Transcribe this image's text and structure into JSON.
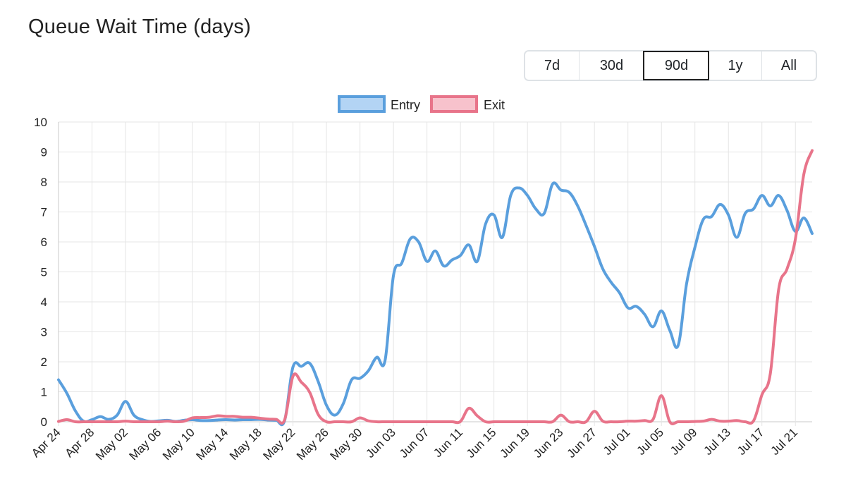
{
  "page": {
    "title": "Queue Wait Time (days)"
  },
  "range_buttons": [
    {
      "label": "7d",
      "active": false
    },
    {
      "label": "30d",
      "active": false
    },
    {
      "label": "90d",
      "active": true
    },
    {
      "label": "1y",
      "active": false
    },
    {
      "label": "All",
      "active": false
    }
  ],
  "chart_data": {
    "type": "line",
    "title": "",
    "xlabel": "",
    "ylabel": "",
    "ylim": [
      0,
      10
    ],
    "yticks": [
      0,
      1,
      2,
      3,
      4,
      5,
      6,
      7,
      8,
      9,
      10
    ],
    "grid": true,
    "legend_position": "top",
    "x": [
      "Apr 24",
      "Apr 25",
      "Apr 26",
      "Apr 27",
      "Apr 28",
      "Apr 29",
      "Apr 30",
      "May 01",
      "May 02",
      "May 03",
      "May 04",
      "May 05",
      "May 06",
      "May 07",
      "May 08",
      "May 09",
      "May 10",
      "May 11",
      "May 12",
      "May 13",
      "May 14",
      "May 15",
      "May 16",
      "May 17",
      "May 18",
      "May 19",
      "May 20",
      "May 21",
      "May 22",
      "May 23",
      "May 24",
      "May 25",
      "May 26",
      "May 27",
      "May 28",
      "May 29",
      "May 30",
      "May 31",
      "Jun 01",
      "Jun 02",
      "Jun 03",
      "Jun 04",
      "Jun 05",
      "Jun 06",
      "Jun 07",
      "Jun 08",
      "Jun 09",
      "Jun 10",
      "Jun 11",
      "Jun 12",
      "Jun 13",
      "Jun 14",
      "Jun 15",
      "Jun 16",
      "Jun 17",
      "Jun 18",
      "Jun 19",
      "Jun 20",
      "Jun 21",
      "Jun 22",
      "Jun 23",
      "Jun 24",
      "Jun 25",
      "Jun 26",
      "Jun 27",
      "Jun 28",
      "Jun 29",
      "Jun 30",
      "Jul 01",
      "Jul 02",
      "Jul 03",
      "Jul 04",
      "Jul 05",
      "Jul 06",
      "Jul 07",
      "Jul 08",
      "Jul 09",
      "Jul 10",
      "Jul 11",
      "Jul 12",
      "Jul 13",
      "Jul 14",
      "Jul 15",
      "Jul 16",
      "Jul 17",
      "Jul 18",
      "Jul 19",
      "Jul 20",
      "Jul 21",
      "Jul 22",
      "Jul 23"
    ],
    "x_tick_labels": [
      "Apr 24",
      "Apr 28",
      "May 02",
      "May 06",
      "May 10",
      "May 14",
      "May 18",
      "May 22",
      "May 26",
      "May 30",
      "Jun 03",
      "Jun 07",
      "Jun 11",
      "Jun 15",
      "Jun 19",
      "Jun 23",
      "Jun 27",
      "Jul 01",
      "Jul 05",
      "Jul 09",
      "Jul 13",
      "Jul 17",
      "Jul 21"
    ],
    "series": [
      {
        "name": "Entry",
        "color": "#5a9fdd",
        "fill": "#b3d4f4",
        "values": [
          1.4,
          0.95,
          0.37,
          0.02,
          0.07,
          0.17,
          0.08,
          0.22,
          0.68,
          0.22,
          0.07,
          0.01,
          0.03,
          0.05,
          0.01,
          0.05,
          0.07,
          0.04,
          0.04,
          0.06,
          0.07,
          0.06,
          0.07,
          0.07,
          0.08,
          0.06,
          0.05,
          0.04,
          1.83,
          1.85,
          1.95,
          1.35,
          0.55,
          0.22,
          0.6,
          1.4,
          1.45,
          1.7,
          2.15,
          2.05,
          4.88,
          5.3,
          6.1,
          6.0,
          5.35,
          5.7,
          5.2,
          5.4,
          5.55,
          5.9,
          5.35,
          6.6,
          6.9,
          6.15,
          7.55,
          7.8,
          7.55,
          7.1,
          6.95,
          7.93,
          7.73,
          7.65,
          7.2,
          6.55,
          5.85,
          5.1,
          4.65,
          4.3,
          3.8,
          3.85,
          3.58,
          3.17,
          3.7,
          3.05,
          2.55,
          4.6,
          5.82,
          6.75,
          6.85,
          7.25,
          6.9,
          6.15,
          6.95,
          7.1,
          7.55,
          7.2,
          7.55,
          7.05,
          6.35,
          6.8,
          6.28
        ]
      },
      {
        "name": "Exit",
        "color": "#e8748a",
        "fill": "#f7c2cc",
        "values": [
          0.01,
          0.07,
          0.0,
          0.0,
          0.0,
          0.0,
          0.0,
          0.0,
          0.02,
          0.0,
          0.0,
          0.0,
          0.0,
          0.02,
          0.0,
          0.02,
          0.13,
          0.14,
          0.15,
          0.2,
          0.18,
          0.18,
          0.15,
          0.15,
          0.12,
          0.09,
          0.08,
          0.06,
          1.52,
          1.32,
          0.98,
          0.25,
          0.0,
          0.0,
          0.0,
          0.0,
          0.13,
          0.03,
          0.0,
          0.0,
          0.0,
          0.0,
          0.0,
          0.0,
          0.0,
          0.0,
          0.0,
          0.0,
          0.01,
          0.45,
          0.2,
          0.0,
          0.0,
          0.0,
          0.0,
          0.0,
          0.0,
          0.0,
          0.0,
          0.0,
          0.22,
          0.0,
          0.0,
          0.0,
          0.35,
          0.02,
          0.0,
          0.0,
          0.02,
          0.02,
          0.04,
          0.08,
          0.87,
          0.0,
          0.0,
          0.0,
          0.01,
          0.02,
          0.08,
          0.02,
          0.02,
          0.04,
          0.0,
          0.03,
          0.9,
          1.6,
          4.42,
          5.1,
          6.1,
          8.25,
          9.05
        ]
      }
    ]
  }
}
